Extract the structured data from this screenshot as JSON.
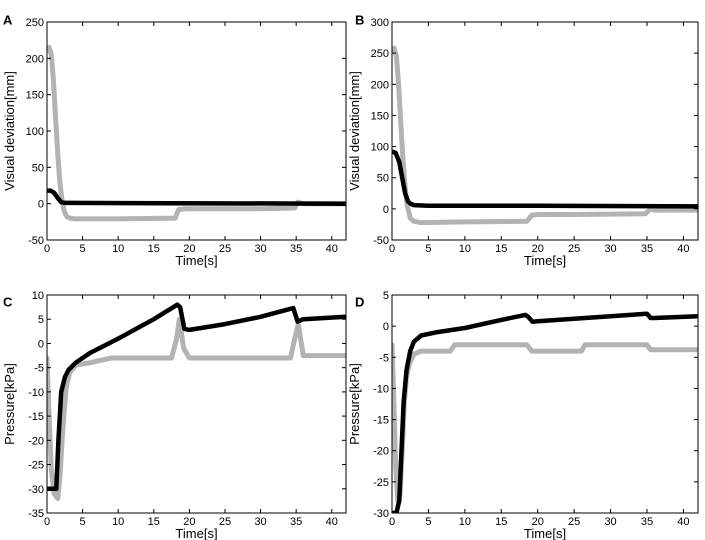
{
  "colors": {
    "black_series": "#000000",
    "gray_series": "#b3b3b3"
  },
  "chart_data": [
    {
      "panel": "A",
      "type": "line",
      "xlabel": "Time[s]",
      "ylabel": "Visual deviation[mm]",
      "xlim": [
        0,
        42
      ],
      "ylim": [
        -50,
        250
      ],
      "xticks": [
        0,
        5,
        10,
        15,
        20,
        25,
        30,
        35,
        40
      ],
      "yticks": [
        -50,
        0,
        50,
        100,
        150,
        200,
        250
      ],
      "series": [
        {
          "name": "black",
          "color": "#000000",
          "x": [
            0,
            0.5,
            1,
            1.5,
            2,
            2.5,
            3,
            42
          ],
          "y": [
            18,
            18,
            15,
            8,
            2,
            1,
            1,
            0
          ]
        },
        {
          "name": "gray",
          "color": "#b3b3b3",
          "x": [
            0,
            0.3,
            0.6,
            0.9,
            1.2,
            1.5,
            1.8,
            2.1,
            2.4,
            2.8,
            3.2,
            4,
            10,
            16.5,
            17,
            18,
            18.5,
            19.5,
            25,
            30,
            34.8,
            35.2,
            36,
            42
          ],
          "y": [
            212,
            215,
            205,
            170,
            120,
            70,
            30,
            5,
            -10,
            -18,
            -20,
            -21,
            -21,
            -20,
            -20,
            -20,
            -8,
            -7,
            -7,
            -7,
            -6,
            2,
            0,
            0
          ]
        }
      ]
    },
    {
      "panel": "B",
      "type": "line",
      "xlabel": "Time[s]",
      "ylabel": "Visual deviation[mm]",
      "xlim": [
        0,
        42
      ],
      "ylim": [
        -50,
        300
      ],
      "xticks": [
        0,
        5,
        10,
        15,
        20,
        25,
        30,
        35,
        40
      ],
      "yticks": [
        -50,
        0,
        50,
        100,
        150,
        200,
        250,
        300
      ],
      "series": [
        {
          "name": "black",
          "color": "#000000",
          "x": [
            0,
            0.5,
            1,
            1.4,
            1.8,
            2.2,
            2.6,
            3,
            5,
            20,
            42
          ],
          "y": [
            92,
            90,
            75,
            50,
            25,
            12,
            8,
            6,
            5,
            5,
            4
          ]
        },
        {
          "name": "gray",
          "color": "#b3b3b3",
          "x": [
            0,
            0.3,
            0.6,
            0.9,
            1.2,
            1.5,
            1.8,
            2.1,
            2.5,
            3,
            4,
            10,
            18.5,
            19.2,
            20,
            25,
            34.8,
            35.5,
            36,
            42
          ],
          "y": [
            255,
            258,
            245,
            200,
            140,
            80,
            35,
            5,
            -15,
            -20,
            -22,
            -21,
            -20,
            -10,
            -9,
            -9,
            -8,
            0,
            -2,
            -2
          ]
        }
      ]
    },
    {
      "panel": "C",
      "type": "line",
      "xlabel": "Time[s]",
      "ylabel": "Pressure[kPa]",
      "xlim": [
        0,
        42
      ],
      "ylim": [
        -35,
        10
      ],
      "xticks": [
        0,
        5,
        10,
        15,
        20,
        25,
        30,
        35,
        40
      ],
      "yticks": [
        -35,
        -30,
        -25,
        -20,
        -15,
        -10,
        -5,
        0,
        5,
        10
      ],
      "series": [
        {
          "name": "black",
          "color": "#000000",
          "x": [
            0,
            0.8,
            1.3,
            1.6,
            2,
            2.5,
            3,
            4,
            6,
            10,
            15,
            18.3,
            18.7,
            19.3,
            20,
            25,
            30,
            34.6,
            35.2,
            36,
            42
          ],
          "y": [
            -30,
            -30,
            -30,
            -20,
            -10,
            -7,
            -5.5,
            -4,
            -2,
            1,
            5,
            8,
            7.5,
            3,
            2.8,
            4,
            5.5,
            7.3,
            4.5,
            5,
            5.5
          ]
        },
        {
          "name": "gray",
          "color": "#b3b3b3",
          "x": [
            0,
            0.3,
            0.6,
            1,
            1.5,
            1.8,
            2.2,
            2.7,
            3.2,
            4,
            6,
            9,
            12,
            17.5,
            18.2,
            18.6,
            19.2,
            20,
            25,
            34.2,
            34.8,
            35.3,
            36,
            42
          ],
          "y": [
            -3,
            -15,
            -26,
            -31,
            -32,
            -28,
            -18,
            -9,
            -6,
            -4.5,
            -4,
            -3,
            -3,
            -3,
            1,
            5,
            -1,
            -3,
            -3,
            -3,
            1,
            4,
            -2.5,
            -2.5
          ]
        }
      ]
    },
    {
      "panel": "D",
      "type": "line",
      "xlabel": "Time[s]",
      "ylabel": "Pressure[kPa]",
      "xlim": [
        0,
        42
      ],
      "ylim": [
        -30,
        5
      ],
      "xticks": [
        0,
        5,
        10,
        15,
        20,
        25,
        30,
        35,
        40
      ],
      "yticks": [
        -30,
        -25,
        -20,
        -15,
        -10,
        -5,
        0,
        5
      ],
      "series": [
        {
          "name": "black",
          "color": "#000000",
          "x": [
            0,
            0.6,
            1,
            1.3,
            1.6,
            2,
            2.5,
            3,
            4,
            6,
            10,
            15,
            18.3,
            18.7,
            19.3,
            20,
            25,
            30,
            35,
            35.5,
            36,
            42
          ],
          "y": [
            -30,
            -30,
            -28,
            -20,
            -12,
            -7,
            -4,
            -2.5,
            -1.5,
            -1,
            -0.3,
            1,
            1.8,
            1.5,
            0.7,
            0.8,
            1.2,
            1.6,
            2,
            1.3,
            1.3,
            1.6
          ]
        },
        {
          "name": "gray",
          "color": "#b3b3b3",
          "x": [
            0,
            0.2,
            0.5,
            0.8,
            1.1,
            1.4,
            1.7,
            2,
            2.4,
            3,
            4,
            6,
            7,
            8,
            8.6,
            15,
            18.5,
            19.2,
            26,
            26.5,
            35,
            35.5,
            42
          ],
          "y": [
            -3,
            -10,
            -22,
            -28,
            -27,
            -20,
            -12,
            -8,
            -6,
            -4.5,
            -4,
            -4,
            -4,
            -4,
            -3,
            -3,
            -3,
            -4,
            -4,
            -3,
            -3,
            -3.8,
            -3.8
          ]
        }
      ]
    }
  ]
}
